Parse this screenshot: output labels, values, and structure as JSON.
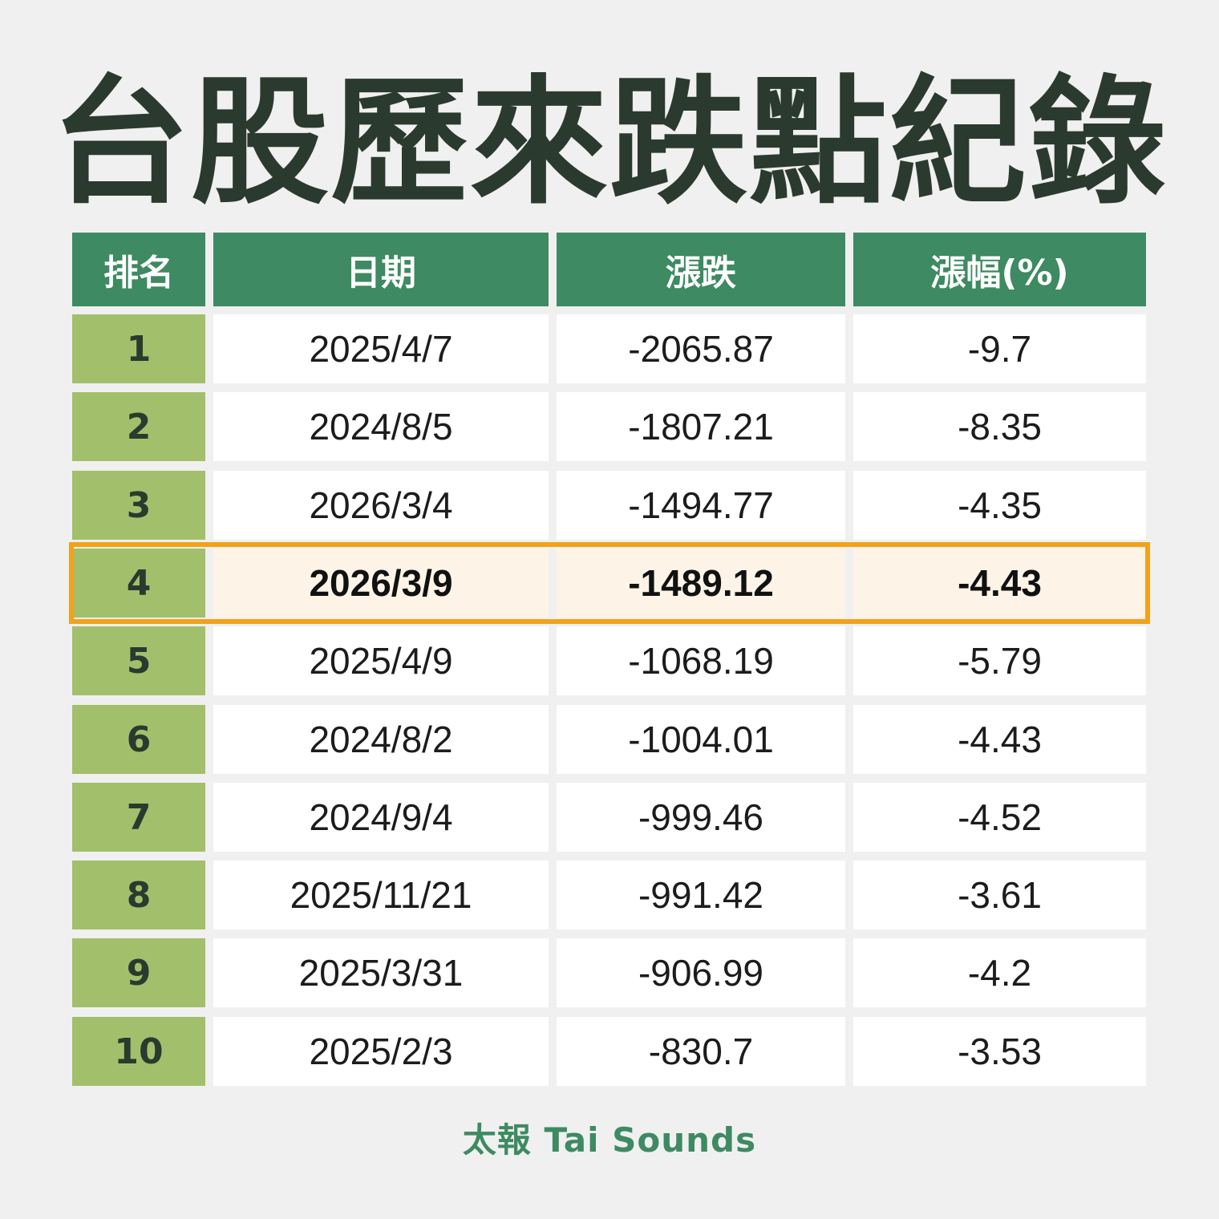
{
  "title": "台股歷來跌點紀錄",
  "table": {
    "headers": [
      "排名",
      "日期",
      "漲跌",
      "漲幅(%)"
    ],
    "highlight_rank": 4,
    "rows": [
      {
        "rank": "1",
        "date": "2025/4/7",
        "change": "-2065.87",
        "pct": "-9.7"
      },
      {
        "rank": "2",
        "date": "2024/8/5",
        "change": "-1807.21",
        "pct": "-8.35"
      },
      {
        "rank": "3",
        "date": "2026/3/4",
        "change": "-1494.77",
        "pct": "-4.35"
      },
      {
        "rank": "4",
        "date": "2026/3/9",
        "change": "-1489.12",
        "pct": "-4.43"
      },
      {
        "rank": "5",
        "date": "2025/4/9",
        "change": "-1068.19",
        "pct": "-5.79"
      },
      {
        "rank": "6",
        "date": "2024/8/2",
        "change": "-1004.01",
        "pct": "-4.43"
      },
      {
        "rank": "7",
        "date": "2024/9/4",
        "change": "-999.46",
        "pct": "-4.52"
      },
      {
        "rank": "8",
        "date": "2025/11/21",
        "change": "-991.42",
        "pct": "-3.61"
      },
      {
        "rank": "9",
        "date": "2025/3/31",
        "change": "-906.99",
        "pct": "-4.2"
      },
      {
        "rank": "10",
        "date": "2025/2/3",
        "change": "-830.7",
        "pct": "-3.53"
      }
    ]
  },
  "footer": "太報 Tai Sounds",
  "colors": {
    "title": "#2b3a2f",
    "header_bg": "#3e8a62",
    "rank_bg": "#a2c06b",
    "highlight_border": "#f2a21a",
    "highlight_bg": "#fdf4e7",
    "footer": "#3e8a62",
    "page_bg": "#f0f0f0"
  }
}
